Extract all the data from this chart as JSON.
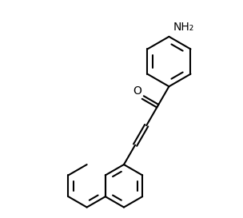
{
  "background_color": "#ffffff",
  "line_color": "#000000",
  "line_width": 1.5,
  "fig_width": 3.04,
  "fig_height": 2.73,
  "dpi": 100,
  "nh2_label": "NH₂",
  "o_label": "O",
  "font_size": 9,
  "xlim": [
    0,
    10
  ],
  "ylim": [
    0,
    9
  ]
}
